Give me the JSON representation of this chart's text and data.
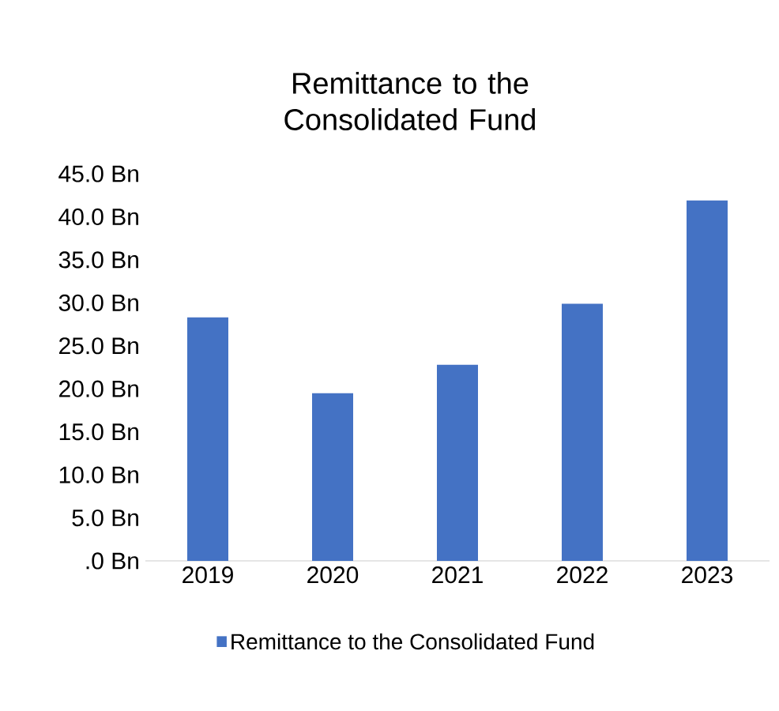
{
  "chart_data": {
    "type": "bar",
    "title": "Remittance to the Consolidated Fund",
    "categories": [
      "2019",
      "2020",
      "2021",
      "2022",
      "2023"
    ],
    "series": [
      {
        "name": "Remittance to the Consolidated Fund",
        "color": "#4472c4",
        "values": [
          28.3,
          19.5,
          22.8,
          29.9,
          41.9
        ]
      }
    ],
    "ylim": [
      0,
      45
    ],
    "yticks": [
      {
        "value": 0,
        "label": ".0 Bn"
      },
      {
        "value": 5,
        "label": "5.0 Bn"
      },
      {
        "value": 10,
        "label": "10.0 Bn"
      },
      {
        "value": 15,
        "label": "15.0 Bn"
      },
      {
        "value": 20,
        "label": "20.0 Bn"
      },
      {
        "value": 25,
        "label": "25.0 Bn"
      },
      {
        "value": 30,
        "label": "30.0 Bn"
      },
      {
        "value": 35,
        "label": "35.0 Bn"
      },
      {
        "value": 40,
        "label": "40.0 Bn"
      },
      {
        "value": 45,
        "label": "45.0 Bn"
      }
    ],
    "legend": "bottom"
  }
}
